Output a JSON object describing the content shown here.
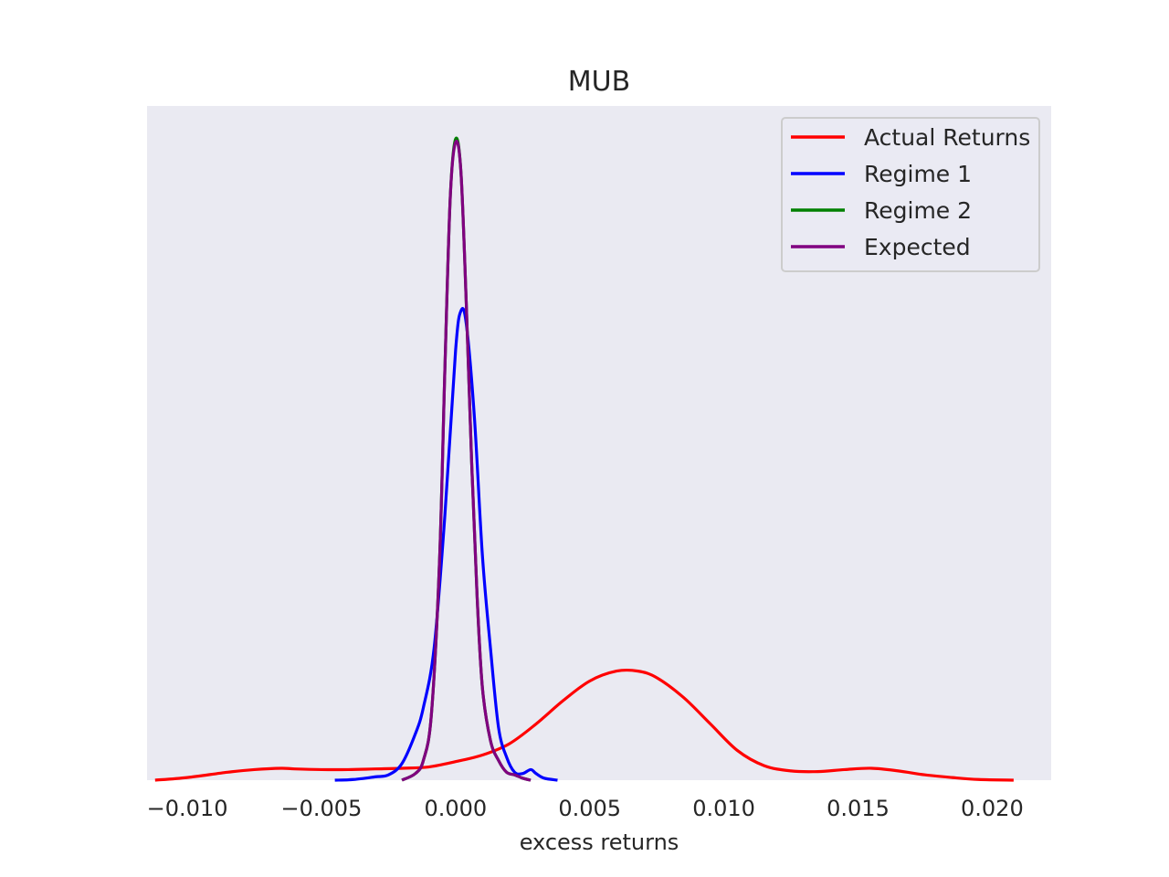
{
  "chart_data": {
    "type": "line",
    "title": "MUB",
    "xlabel": "excess returns",
    "ylabel": "",
    "xlim": [
      -0.0115,
      0.0222
    ],
    "ylim": [
      0,
      1.02
    ],
    "grid": false,
    "legend_location": "upper right",
    "xticks": [
      -0.01,
      -0.005,
      0.0,
      0.005,
      0.01,
      0.015,
      0.02
    ],
    "xtick_labels": [
      "−0.010",
      "−0.005",
      "0.000",
      "0.005",
      "0.010",
      "0.015",
      "0.020"
    ],
    "series": [
      {
        "name": "Actual Returns",
        "color": "#ff0000",
        "x": [
          -0.0112,
          -0.01,
          -0.0085,
          -0.0075,
          -0.0065,
          -0.006,
          -0.005,
          -0.004,
          -0.003,
          -0.002,
          -0.001,
          0.0,
          0.001,
          0.002,
          0.003,
          0.004,
          0.005,
          0.006,
          0.0068,
          0.0075,
          0.0085,
          0.0095,
          0.0105,
          0.0115,
          0.0125,
          0.0135,
          0.0145,
          0.0155,
          0.0165,
          0.0175,
          0.0185,
          0.0195,
          0.0208
        ],
        "y": [
          0.0,
          0.004,
          0.012,
          0.016,
          0.018,
          0.017,
          0.016,
          0.016,
          0.017,
          0.018,
          0.02,
          0.028,
          0.038,
          0.055,
          0.085,
          0.12,
          0.15,
          0.165,
          0.165,
          0.155,
          0.125,
          0.085,
          0.045,
          0.022,
          0.014,
          0.013,
          0.016,
          0.018,
          0.014,
          0.008,
          0.004,
          0.001,
          0.0
        ]
      },
      {
        "name": "Regime 1",
        "color": "#0000ff",
        "x": [
          -0.0045,
          -0.0038,
          -0.003,
          -0.0025,
          -0.002,
          -0.0015,
          -0.0012,
          -0.0008,
          -0.0004,
          0.0,
          0.0002,
          0.0004,
          0.0007,
          0.001,
          0.0013,
          0.0016,
          0.0019,
          0.0022,
          0.0025,
          0.0028,
          0.003,
          0.0033,
          0.0038
        ],
        "y": [
          0.0,
          0.001,
          0.005,
          0.008,
          0.025,
          0.07,
          0.11,
          0.2,
          0.4,
          0.65,
          0.71,
          0.69,
          0.55,
          0.34,
          0.2,
          0.08,
          0.035,
          0.012,
          0.01,
          0.016,
          0.01,
          0.003,
          0.0
        ]
      },
      {
        "name": "Regime 2",
        "color": "#008000",
        "x": [
          -0.002,
          -0.0015,
          -0.0012,
          -0.0009,
          -0.0006,
          -0.0004,
          -0.0002,
          0.0,
          0.0002,
          0.0004,
          0.0006,
          0.0008,
          0.001,
          0.0013,
          0.0016,
          0.0019,
          0.0022,
          0.0025,
          0.0028
        ],
        "y": [
          0.0,
          0.01,
          0.03,
          0.1,
          0.33,
          0.62,
          0.88,
          0.97,
          0.92,
          0.72,
          0.48,
          0.28,
          0.14,
          0.06,
          0.03,
          0.012,
          0.008,
          0.003,
          0.0
        ]
      },
      {
        "name": "Expected",
        "color": "#800080",
        "x": [
          -0.002,
          -0.0015,
          -0.0012,
          -0.0009,
          -0.0006,
          -0.0004,
          -0.0002,
          0.0,
          0.0002,
          0.0004,
          0.0006,
          0.0008,
          0.001,
          0.0013,
          0.0016,
          0.0019,
          0.0022,
          0.0025,
          0.0028
        ],
        "y": [
          0.0,
          0.01,
          0.03,
          0.1,
          0.33,
          0.62,
          0.88,
          0.965,
          0.92,
          0.72,
          0.48,
          0.28,
          0.14,
          0.06,
          0.03,
          0.012,
          0.008,
          0.003,
          0.0
        ]
      }
    ]
  },
  "colors": {
    "plot_background": "#eaeaf2",
    "text": "#262626",
    "legend_border": "#cccccc"
  }
}
